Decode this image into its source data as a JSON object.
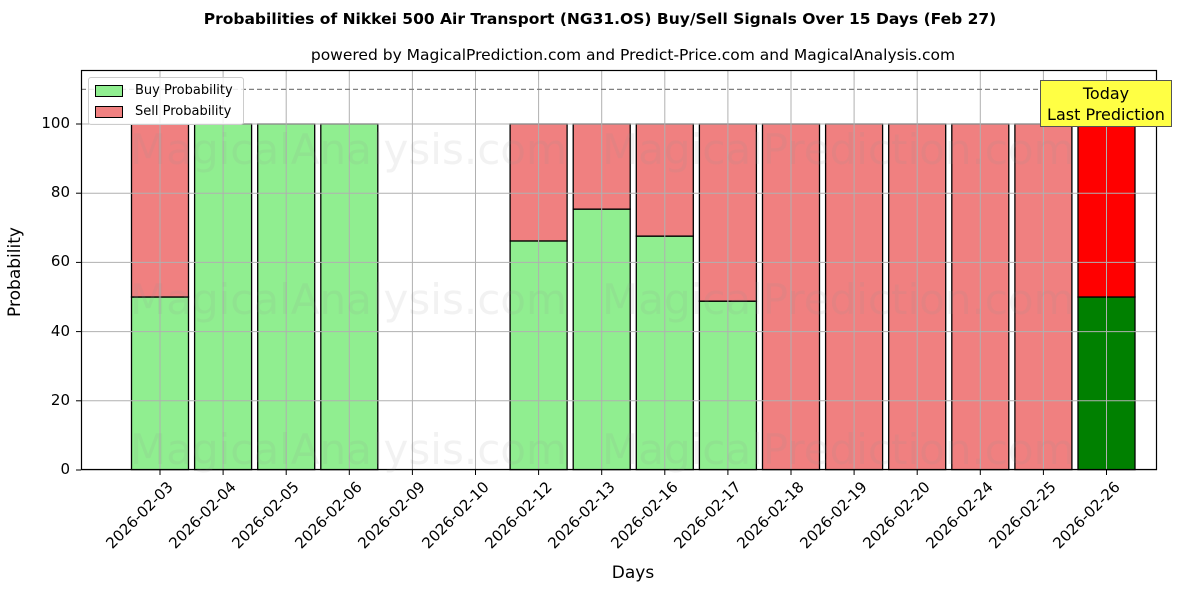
{
  "title": "Probabilities of Nikkei 500 Air Transport (NG31.OS) Buy/Sell Signals Over 15 Days (Feb 27)",
  "subtitle": "powered by MagicalPrediction.com and Predict-Price.com and MagicalAnalysis.com",
  "xlabel": "Days",
  "ylabel": "Probability",
  "yticks": [
    "0",
    "20",
    "40",
    "60",
    "80",
    "100"
  ],
  "legend": {
    "buy": "Buy Probability",
    "sell": "Sell Probability"
  },
  "annotation": {
    "line1": "Today",
    "line2": "Last Prediction"
  },
  "watermarks": [
    "MagicalAnalysis.com",
    "MagicalPrediction.com"
  ],
  "colors": {
    "buy": "#90ee90",
    "sell": "#f08080",
    "buy_today": "#008000",
    "sell_today": "#ff0000",
    "annotation_bg": "#ffff44"
  },
  "chart_data": {
    "type": "bar",
    "stacked": true,
    "title": "Probabilities of Nikkei 500 Air Transport (NG31.OS) Buy/Sell Signals Over 15 Days (Feb 27)",
    "subtitle": "powered by MagicalPrediction.com and Predict-Price.com and MagicalAnalysis.com",
    "xlabel": "Days",
    "ylabel": "Probability",
    "ylim": [
      0,
      115
    ],
    "yticks": [
      0,
      20,
      40,
      60,
      80,
      100
    ],
    "grid": true,
    "legend_position": "upper left",
    "reference_line": {
      "y": 110,
      "style": "dashed",
      "color": "#808080"
    },
    "categories": [
      "2026-02-03",
      "2026-02-04",
      "2026-02-05",
      "2026-02-06",
      "2026-02-09",
      "2026-02-10",
      "2026-02-12",
      "2026-02-13",
      "2026-02-16",
      "2026-02-17",
      "2026-02-18",
      "2026-02-19",
      "2026-02-20",
      "2026-02-24",
      "2026-02-25",
      "2026-02-26"
    ],
    "series": [
      {
        "name": "Buy Probability",
        "values": [
          50,
          100,
          100,
          100,
          0,
          0,
          66.2,
          75.4,
          67.6,
          48.8,
          0,
          0,
          0,
          0,
          0,
          50
        ]
      },
      {
        "name": "Sell Probability",
        "values": [
          50,
          0,
          0,
          0,
          0,
          0,
          33.8,
          24.6,
          32.4,
          51.2,
          100,
          100,
          100,
          100,
          100,
          50
        ]
      }
    ],
    "annotations": [
      {
        "text": "Today\nLast Prediction",
        "x": "2026-02-26",
        "position": "top-right"
      }
    ]
  }
}
